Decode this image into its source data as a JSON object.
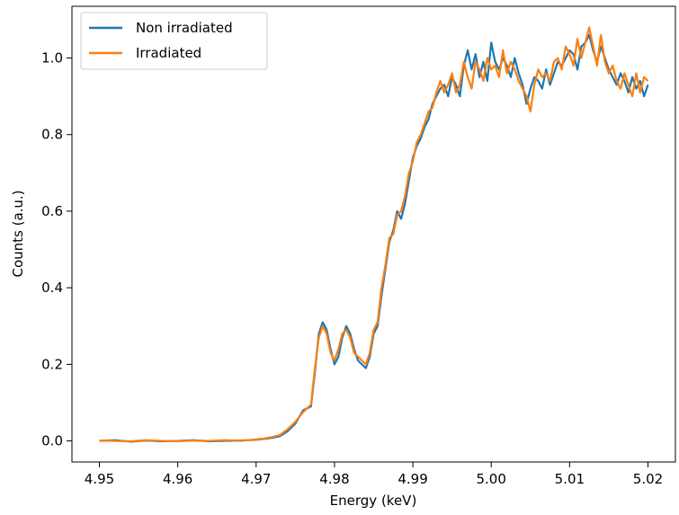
{
  "chart_data": {
    "type": "line",
    "title": "",
    "xlabel": "Energy (keV)",
    "ylabel": "Counts (a.u.)",
    "xlim": [
      4.9465,
      5.0235
    ],
    "ylim": [
      -0.055,
      1.135
    ],
    "xticks": [
      4.95,
      4.96,
      4.97,
      4.98,
      4.99,
      5.0,
      5.01,
      5.02
    ],
    "xtick_labels": [
      "4.95",
      "4.96",
      "4.97",
      "4.98",
      "4.99",
      "5.00",
      "5.01",
      "5.02"
    ],
    "yticks": [
      0.0,
      0.2,
      0.4,
      0.6,
      0.8,
      1.0
    ],
    "ytick_labels": [
      "0.0",
      "0.2",
      "0.4",
      "0.6",
      "0.8",
      "1.0"
    ],
    "grid": false,
    "legend_position": "top-left",
    "series": [
      {
        "name": "Non irradiated",
        "color": "#1f77b4",
        "x": [
          4.95,
          4.952,
          4.954,
          4.956,
          4.958,
          4.96,
          4.962,
          4.964,
          4.966,
          4.968,
          4.97,
          4.971,
          4.972,
          4.973,
          4.974,
          4.975,
          4.976,
          4.977,
          4.9775,
          4.978,
          4.9785,
          4.979,
          4.9795,
          4.98,
          4.9805,
          4.981,
          4.9815,
          4.982,
          4.9825,
          4.983,
          4.9835,
          4.984,
          4.9845,
          4.985,
          4.9855,
          4.986,
          4.9865,
          4.987,
          4.9875,
          4.988,
          4.9885,
          4.989,
          4.9895,
          4.99,
          4.9905,
          4.991,
          4.9915,
          4.992,
          4.9925,
          4.993,
          4.9935,
          4.994,
          4.9945,
          4.995,
          4.9955,
          4.996,
          4.9965,
          4.997,
          4.9975,
          4.998,
          4.9985,
          4.999,
          4.9995,
          5.0,
          5.0005,
          5.001,
          5.0015,
          5.002,
          5.0025,
          5.003,
          5.0035,
          5.004,
          5.0045,
          5.005,
          5.0055,
          5.006,
          5.0065,
          5.007,
          5.0075,
          5.008,
          5.0085,
          5.009,
          5.0095,
          5.01,
          5.0105,
          5.011,
          5.0115,
          5.012,
          5.0125,
          5.013,
          5.0135,
          5.014,
          5.0145,
          5.015,
          5.0155,
          5.016,
          5.0165,
          5.017,
          5.0175,
          5.018,
          5.0185,
          5.019,
          5.0195,
          5.02
        ],
        "y": [
          0.0,
          0.002,
          -0.002,
          0.001,
          -0.001,
          0.0,
          0.002,
          -0.001,
          0.0,
          0.001,
          0.003,
          0.005,
          0.008,
          0.012,
          0.025,
          0.045,
          0.08,
          0.09,
          0.18,
          0.28,
          0.31,
          0.29,
          0.24,
          0.2,
          0.22,
          0.27,
          0.3,
          0.28,
          0.24,
          0.21,
          0.2,
          0.19,
          0.22,
          0.28,
          0.3,
          0.38,
          0.45,
          0.52,
          0.55,
          0.6,
          0.58,
          0.62,
          0.68,
          0.74,
          0.77,
          0.79,
          0.82,
          0.84,
          0.88,
          0.9,
          0.92,
          0.93,
          0.9,
          0.95,
          0.93,
          0.9,
          0.98,
          1.02,
          0.97,
          1.01,
          0.95,
          0.99,
          0.94,
          1.04,
          0.99,
          0.97,
          1.0,
          0.98,
          0.95,
          1.0,
          0.96,
          0.93,
          0.88,
          0.92,
          0.95,
          0.94,
          0.92,
          0.97,
          0.93,
          0.96,
          0.99,
          0.98,
          1.0,
          1.02,
          1.01,
          0.97,
          1.03,
          1.04,
          1.06,
          1.02,
          0.99,
          1.03,
          1.0,
          0.97,
          0.95,
          0.93,
          0.96,
          0.94,
          0.91,
          0.95,
          0.92,
          0.94,
          0.9,
          0.93
        ],
        "legend_label": "Non irradiated"
      },
      {
        "name": "Irradiated",
        "color": "#ff7f0e",
        "x": [
          4.95,
          4.952,
          4.954,
          4.956,
          4.958,
          4.96,
          4.962,
          4.964,
          4.966,
          4.968,
          4.97,
          4.971,
          4.972,
          4.973,
          4.974,
          4.975,
          4.976,
          4.977,
          4.9775,
          4.978,
          4.9785,
          4.979,
          4.9795,
          4.98,
          4.9805,
          4.981,
          4.9815,
          4.982,
          4.9825,
          4.983,
          4.9835,
          4.984,
          4.9845,
          4.985,
          4.9855,
          4.986,
          4.9865,
          4.987,
          4.9875,
          4.988,
          4.9885,
          4.989,
          4.9895,
          4.99,
          4.9905,
          4.991,
          4.9915,
          4.992,
          4.9925,
          4.993,
          4.9935,
          4.994,
          4.9945,
          4.995,
          4.9955,
          4.996,
          4.9965,
          4.997,
          4.9975,
          4.998,
          4.9985,
          4.999,
          4.9995,
          5.0,
          5.0005,
          5.001,
          5.0015,
          5.002,
          5.0025,
          5.003,
          5.0035,
          5.004,
          5.0045,
          5.005,
          5.0055,
          5.006,
          5.0065,
          5.007,
          5.0075,
          5.008,
          5.0085,
          5.009,
          5.0095,
          5.01,
          5.0105,
          5.011,
          5.0115,
          5.012,
          5.0125,
          5.013,
          5.0135,
          5.014,
          5.0145,
          5.015,
          5.0155,
          5.016,
          5.0165,
          5.017,
          5.0175,
          5.018,
          5.0185,
          5.019,
          5.0195,
          5.02
        ],
        "y": [
          0.001,
          0.0,
          -0.001,
          0.002,
          0.0,
          -0.001,
          0.001,
          0.0,
          0.002,
          0.0,
          0.004,
          0.006,
          0.01,
          0.015,
          0.03,
          0.05,
          0.075,
          0.095,
          0.19,
          0.27,
          0.3,
          0.28,
          0.23,
          0.21,
          0.24,
          0.28,
          0.29,
          0.27,
          0.23,
          0.22,
          0.21,
          0.2,
          0.23,
          0.29,
          0.31,
          0.4,
          0.46,
          0.53,
          0.54,
          0.59,
          0.6,
          0.64,
          0.7,
          0.73,
          0.78,
          0.8,
          0.83,
          0.86,
          0.87,
          0.91,
          0.94,
          0.91,
          0.93,
          0.96,
          0.91,
          0.93,
          0.99,
          0.95,
          0.92,
          0.99,
          0.97,
          0.94,
          1.0,
          0.97,
          0.98,
          0.95,
          1.02,
          0.96,
          0.99,
          0.97,
          0.94,
          0.92,
          0.9,
          0.86,
          0.93,
          0.97,
          0.95,
          0.96,
          0.94,
          0.99,
          1.0,
          0.97,
          1.03,
          1.01,
          0.98,
          1.05,
          1.0,
          1.04,
          1.08,
          1.03,
          0.98,
          1.06,
          0.99,
          0.96,
          0.98,
          0.94,
          0.92,
          0.96,
          0.93,
          0.9,
          0.96,
          0.91,
          0.95,
          0.94
        ],
        "legend_label": "Irradiated"
      }
    ]
  }
}
